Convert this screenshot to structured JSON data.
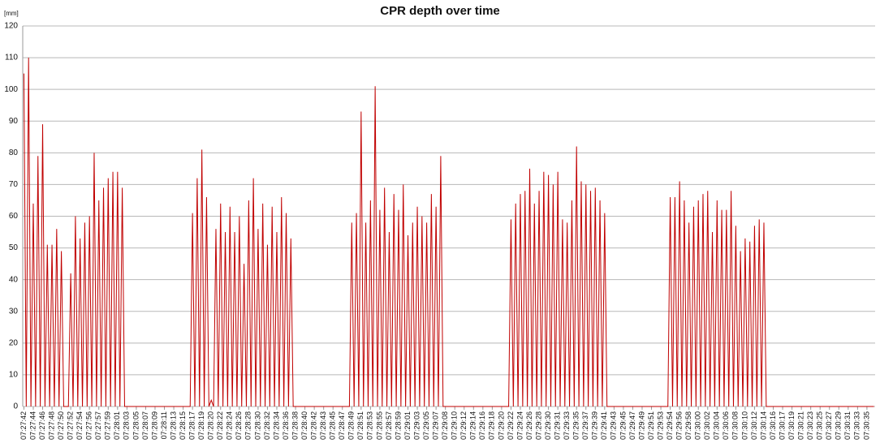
{
  "chart_data": {
    "type": "line",
    "title": "CPR depth over time",
    "y_label": "[mm]",
    "color": "#c00000",
    "ylim": [
      0,
      120
    ],
    "yticks": [
      0,
      10,
      20,
      30,
      40,
      50,
      60,
      70,
      80,
      90,
      100,
      110,
      120
    ],
    "grid": true,
    "categories": [
      "07:27:42",
      null,
      null,
      null,
      "07:27:44",
      null,
      null,
      null,
      "07:27:46",
      null,
      null,
      null,
      "07:27:48",
      null,
      null,
      null,
      "07:27:50",
      null,
      null,
      null,
      "07:27:52",
      null,
      null,
      null,
      "07:27:54",
      null,
      null,
      null,
      "07:27:56",
      null,
      null,
      null,
      "07:27:57",
      null,
      null,
      null,
      "07:27:59",
      null,
      null,
      null,
      "07:28:01",
      null,
      null,
      null,
      "07:28:03",
      null,
      null,
      null,
      "07:28:05",
      null,
      null,
      null,
      "07:28:07",
      null,
      null,
      null,
      "07:28:09",
      null,
      null,
      null,
      "07:28:11",
      null,
      null,
      null,
      "07:28:13",
      null,
      null,
      null,
      "07:28:15",
      null,
      null,
      null,
      "07:28:17",
      null,
      null,
      null,
      "07:28:19",
      null,
      null,
      null,
      "07:28:20",
      null,
      null,
      null,
      "07:28:22",
      null,
      null,
      null,
      "07:28:24",
      null,
      null,
      null,
      "07:28:26",
      null,
      null,
      null,
      "07:28:28",
      null,
      null,
      null,
      "07:28:30",
      null,
      null,
      null,
      "07:28:32",
      null,
      null,
      null,
      "07:28:34",
      null,
      null,
      null,
      "07:28:36",
      null,
      null,
      null,
      "07:28:38",
      null,
      null,
      null,
      "07:28:40",
      null,
      null,
      null,
      "07:28:42",
      null,
      null,
      null,
      "07:28:43",
      null,
      null,
      null,
      "07:28:45",
      null,
      null,
      null,
      "07:28:47",
      null,
      null,
      null,
      "07:28:49",
      null,
      null,
      null,
      "07:28:51",
      null,
      null,
      null,
      "07:28:53",
      null,
      null,
      null,
      "07:28:55",
      null,
      null,
      null,
      "07:28:57",
      null,
      null,
      null,
      "07:28:59",
      null,
      null,
      null,
      "07:29:01",
      null,
      null,
      null,
      "07:29:03",
      null,
      null,
      null,
      "07:29:05",
      null,
      null,
      null,
      "07:29:07",
      null,
      null,
      null,
      "07:29:08",
      null,
      null,
      null,
      "07:29:10",
      null,
      null,
      null,
      "07:29:12",
      null,
      null,
      null,
      "07:29:14",
      null,
      null,
      null,
      "07:29:16",
      null,
      null,
      null,
      "07:29:18",
      null,
      null,
      null,
      "07:29:20",
      null,
      null,
      null,
      "07:29:22",
      null,
      null,
      null,
      "07:29:24",
      null,
      null,
      null,
      "07:29:26",
      null,
      null,
      null,
      "07:29:28",
      null,
      null,
      null,
      "07:29:30",
      null,
      null,
      null,
      "07:29:31",
      null,
      null,
      null,
      "07:29:33",
      null,
      null,
      null,
      "07:29:35",
      null,
      null,
      null,
      "07:29:37",
      null,
      null,
      null,
      "07:29:39",
      null,
      null,
      null,
      "07:29:41",
      null,
      null,
      null,
      "07:29:43",
      null,
      null,
      null,
      "07:29:45",
      null,
      null,
      null,
      "07:29:47",
      null,
      null,
      null,
      "07:29:49",
      null,
      null,
      null,
      "07:29:51",
      null,
      null,
      null,
      "07:29:53",
      null,
      null,
      null,
      "07:29:54",
      null,
      null,
      null,
      "07:29:56",
      null,
      null,
      null,
      "07:29:58",
      null,
      null,
      null,
      "07:30:00",
      null,
      null,
      null,
      "07:30:02",
      null,
      null,
      null,
      "07:30:04",
      null,
      null,
      null,
      "07:30:06",
      null,
      null,
      null,
      "07:30:08",
      null,
      null,
      null,
      "07:30:10",
      null,
      null,
      null,
      "07:30:12",
      null,
      null,
      null,
      "07:30:14",
      null,
      null,
      null,
      "07:30:16",
      null,
      null,
      null,
      "07:30:17",
      null,
      null,
      null,
      "07:30:19",
      null,
      null,
      null,
      "07:30:21",
      null,
      null,
      null,
      "07:30:23",
      null,
      null,
      null,
      "07:30:25",
      null,
      null,
      null,
      "07:30:27",
      null,
      null,
      null,
      "07:30:29",
      null,
      null,
      null,
      "07:30:31",
      null,
      null,
      null,
      "07:30:33",
      null,
      null,
      null,
      "07:30:35",
      null,
      null,
      null
    ],
    "values": [
      105,
      0,
      110,
      0,
      64,
      0,
      79,
      0,
      89,
      0,
      51,
      0,
      51,
      0,
      56,
      0,
      49,
      0,
      0,
      0,
      42,
      0,
      60,
      0,
      53,
      0,
      58,
      0,
      60,
      0,
      80,
      0,
      65,
      0,
      69,
      0,
      72,
      0,
      74,
      0,
      74,
      0,
      69,
      0,
      0,
      0,
      0,
      0,
      0,
      0,
      0,
      0,
      0,
      0,
      0,
      0,
      0,
      0,
      0,
      0,
      0,
      0,
      0,
      0,
      0,
      0,
      0,
      0,
      0,
      0,
      0,
      0,
      61,
      0,
      72,
      0,
      81,
      0,
      66,
      0,
      2,
      0,
      56,
      0,
      64,
      0,
      55,
      0,
      63,
      0,
      55,
      0,
      60,
      0,
      45,
      0,
      65,
      0,
      72,
      0,
      56,
      0,
      64,
      0,
      51,
      0,
      63,
      0,
      55,
      0,
      66,
      0,
      61,
      0,
      53,
      0,
      0,
      0,
      0,
      0,
      0,
      0,
      0,
      0,
      0,
      0,
      0,
      0,
      0,
      0,
      0,
      0,
      0,
      0,
      0,
      0,
      0,
      0,
      0,
      0,
      58,
      0,
      61,
      0,
      93,
      0,
      58,
      0,
      65,
      0,
      101,
      0,
      62,
      0,
      69,
      0,
      55,
      0,
      67,
      0,
      62,
      0,
      70,
      0,
      54,
      0,
      58,
      0,
      63,
      0,
      60,
      0,
      58,
      0,
      67,
      0,
      63,
      0,
      79,
      0,
      0,
      0,
      0,
      0,
      0,
      0,
      0,
      0,
      0,
      0,
      0,
      0,
      0,
      0,
      0,
      0,
      0,
      0,
      0,
      0,
      0,
      0,
      0,
      0,
      0,
      0,
      0,
      0,
      59,
      0,
      64,
      0,
      67,
      0,
      68,
      0,
      75,
      0,
      64,
      0,
      68,
      0,
      74,
      0,
      73,
      0,
      70,
      0,
      74,
      0,
      59,
      0,
      58,
      0,
      65,
      0,
      82,
      0,
      71,
      0,
      70,
      0,
      68,
      0,
      69,
      0,
      65,
      0,
      61,
      0,
      0,
      0,
      0,
      0,
      0,
      0,
      0,
      0,
      0,
      0,
      0,
      0,
      0,
      0,
      0,
      0,
      0,
      0,
      0,
      0,
      0,
      0,
      0,
      0,
      0,
      0,
      66,
      0,
      66,
      0,
      71,
      0,
      65,
      0,
      58,
      0,
      63,
      0,
      65,
      0,
      67,
      0,
      68,
      0,
      55,
      0,
      65,
      0,
      62,
      0,
      62,
      0,
      68,
      0,
      57,
      0,
      49,
      0,
      53,
      0,
      52,
      0,
      57,
      0,
      59,
      0,
      58,
      0,
      0,
      0,
      0,
      0,
      0,
      0,
      0,
      0,
      0,
      0,
      0,
      0,
      0,
      0,
      0,
      0,
      0,
      0,
      0,
      0,
      0,
      0,
      0,
      0,
      0,
      0,
      0,
      0,
      0,
      0,
      0,
      0,
      0,
      0,
      0,
      0,
      0,
      0,
      0,
      0,
      0,
      0,
      0,
      0,
      0,
      0
    ]
  }
}
